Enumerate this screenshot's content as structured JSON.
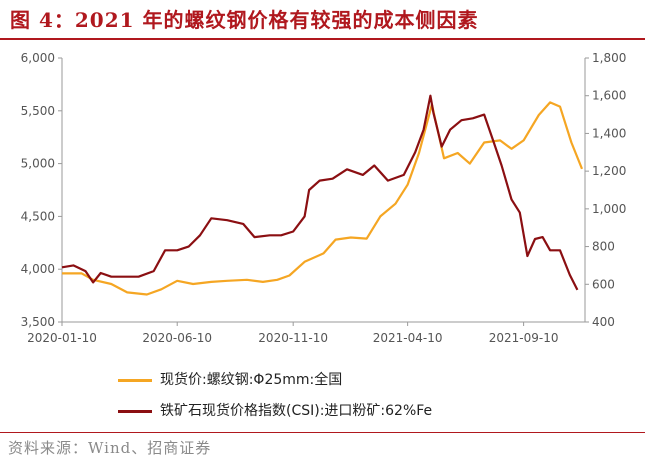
{
  "title": "图 4：2021 年的螺纹钢价格有较强的成本侧因素",
  "source": "资料来源：Wind、招商证券",
  "colors": {
    "rebar": "#f5a623",
    "ore": "#8b0f12",
    "accent": "#b0181e"
  },
  "chart_data": {
    "type": "line",
    "x_ticks": [
      "2020-01-10",
      "2020-06-10",
      "2020-11-10",
      "2021-04-10",
      "2021-09-10"
    ],
    "y_left": {
      "range": [
        3500,
        6000
      ],
      "ticks": [
        "3,500",
        "4,000",
        "4,500",
        "5,000",
        "5,500",
        "6,000"
      ]
    },
    "y_right": {
      "range": [
        400,
        1800
      ],
      "ticks": [
        "400",
        "600",
        "800",
        "1,000",
        "1,200",
        "1,400",
        "1,600",
        "1,800"
      ]
    },
    "legend_position": "bottom",
    "grid": false,
    "series": [
      {
        "name": "现货价:螺纹钢:Φ25mm:全国",
        "axis": "left",
        "points": [
          [
            "2020-01-10",
            3960
          ],
          [
            "2020-02-05",
            3960
          ],
          [
            "2020-02-20",
            3900
          ],
          [
            "2020-03-15",
            3860
          ],
          [
            "2020-04-05",
            3780
          ],
          [
            "2020-05-01",
            3760
          ],
          [
            "2020-05-20",
            3810
          ],
          [
            "2020-06-10",
            3890
          ],
          [
            "2020-07-01",
            3860
          ],
          [
            "2020-07-25",
            3880
          ],
          [
            "2020-08-15",
            3890
          ],
          [
            "2020-09-10",
            3900
          ],
          [
            "2020-10-01",
            3880
          ],
          [
            "2020-10-20",
            3900
          ],
          [
            "2020-11-05",
            3940
          ],
          [
            "2020-11-25",
            4070
          ],
          [
            "2020-12-20",
            4150
          ],
          [
            "2021-01-05",
            4280
          ],
          [
            "2021-01-25",
            4300
          ],
          [
            "2021-02-15",
            4290
          ],
          [
            "2021-03-05",
            4500
          ],
          [
            "2021-03-25",
            4620
          ],
          [
            "2021-04-10",
            4800
          ],
          [
            "2021-04-25",
            5100
          ],
          [
            "2021-05-12",
            5560
          ],
          [
            "2021-05-28",
            5050
          ],
          [
            "2021-06-15",
            5100
          ],
          [
            "2021-07-01",
            5000
          ],
          [
            "2021-07-20",
            5200
          ],
          [
            "2021-08-10",
            5220
          ],
          [
            "2021-08-25",
            5140
          ],
          [
            "2021-09-10",
            5220
          ],
          [
            "2021-09-30",
            5460
          ],
          [
            "2021-10-15",
            5580
          ],
          [
            "2021-10-28",
            5540
          ],
          [
            "2021-11-12",
            5200
          ],
          [
            "2021-11-26",
            4950
          ]
        ]
      },
      {
        "name": "铁矿石现货价格指数(CSI):进口粉矿:62%Fe",
        "axis": "right",
        "points": [
          [
            "2020-01-10",
            690
          ],
          [
            "2020-01-25",
            700
          ],
          [
            "2020-02-10",
            670
          ],
          [
            "2020-02-20",
            610
          ],
          [
            "2020-03-01",
            660
          ],
          [
            "2020-03-15",
            640
          ],
          [
            "2020-04-01",
            640
          ],
          [
            "2020-04-20",
            640
          ],
          [
            "2020-05-10",
            670
          ],
          [
            "2020-05-25",
            780
          ],
          [
            "2020-06-10",
            780
          ],
          [
            "2020-06-25",
            800
          ],
          [
            "2020-07-10",
            860
          ],
          [
            "2020-07-25",
            950
          ],
          [
            "2020-08-15",
            940
          ],
          [
            "2020-09-05",
            920
          ],
          [
            "2020-09-20",
            850
          ],
          [
            "2020-10-10",
            860
          ],
          [
            "2020-10-25",
            860
          ],
          [
            "2020-11-10",
            880
          ],
          [
            "2020-11-25",
            960
          ],
          [
            "2020-12-01",
            1100
          ],
          [
            "2020-12-15",
            1150
          ],
          [
            "2021-01-01",
            1160
          ],
          [
            "2021-01-20",
            1210
          ],
          [
            "2021-02-10",
            1180
          ],
          [
            "2021-02-25",
            1230
          ],
          [
            "2021-03-15",
            1150
          ],
          [
            "2021-04-05",
            1180
          ],
          [
            "2021-04-20",
            1300
          ],
          [
            "2021-05-01",
            1420
          ],
          [
            "2021-05-10",
            1600
          ],
          [
            "2021-05-14",
            1510
          ],
          [
            "2021-05-25",
            1330
          ],
          [
            "2021-06-05",
            1420
          ],
          [
            "2021-06-20",
            1470
          ],
          [
            "2021-07-05",
            1480
          ],
          [
            "2021-07-20",
            1500
          ],
          [
            "2021-08-01",
            1360
          ],
          [
            "2021-08-12",
            1230
          ],
          [
            "2021-08-25",
            1050
          ],
          [
            "2021-09-05",
            980
          ],
          [
            "2021-09-15",
            750
          ],
          [
            "2021-09-25",
            840
          ],
          [
            "2021-10-05",
            850
          ],
          [
            "2021-10-15",
            780
          ],
          [
            "2021-10-28",
            780
          ],
          [
            "2021-11-10",
            650
          ],
          [
            "2021-11-20",
            570
          ]
        ]
      }
    ]
  }
}
